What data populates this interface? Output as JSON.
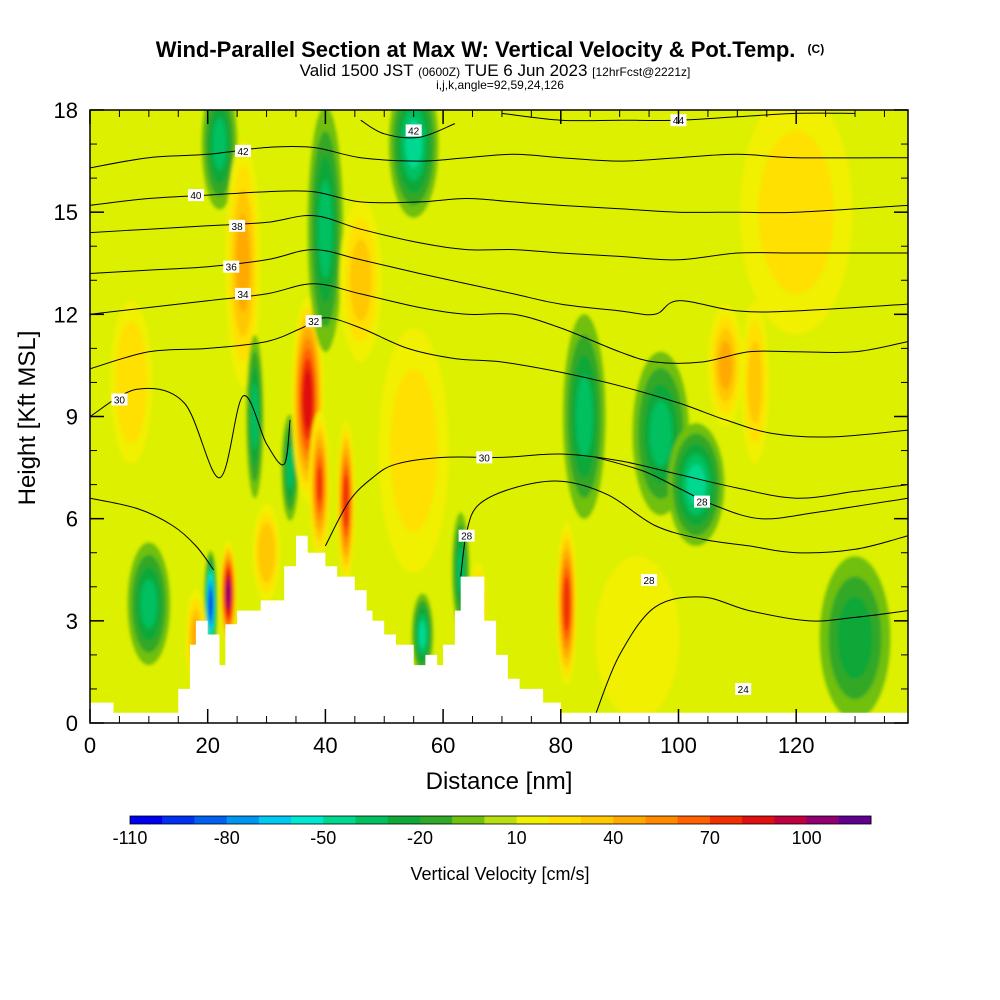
{
  "chart_data": {
    "type": "heatmap",
    "title": "Wind-Parallel Section at Max W: Vertical Velocity & Pot.Temp.",
    "title_mark": "(C)",
    "subtitle_parts": [
      "Valid 1500 JST",
      "(0600Z)",
      "TUE 6 Jun 2023",
      "[12hrFcst@2221z]"
    ],
    "subtitle2": "i,j,k,angle=92,59,24,126",
    "xlabel": "Distance [nm]",
    "ylabel": "Height [Kft MSL]",
    "xlim": [
      0,
      139
    ],
    "ylim": [
      0,
      18
    ],
    "x_ticks": [
      0,
      20,
      40,
      60,
      80,
      100,
      120
    ],
    "y_ticks": [
      0,
      3,
      6,
      9,
      12,
      15,
      18
    ],
    "colorbar": {
      "label": "Vertical Velocity [cm/s]",
      "tick_labels": [
        "-110",
        "-80",
        "-50",
        "-20",
        "10",
        "40",
        "70",
        "100"
      ],
      "levels": [
        -110,
        -100,
        -90,
        -80,
        -70,
        -60,
        -50,
        -40,
        -30,
        -20,
        -10,
        0,
        10,
        20,
        30,
        40,
        50,
        60,
        70,
        80,
        90,
        100,
        110
      ],
      "colors": [
        "#0000ee",
        "#0030f0",
        "#0060f0",
        "#0096f0",
        "#00c8f0",
        "#00e8d0",
        "#00d890",
        "#00c060",
        "#10a838",
        "#30a828",
        "#70c010",
        "#b8e010",
        "#f0f000",
        "#ffe000",
        "#ffc800",
        "#ffaa00",
        "#ff8a00",
        "#ff6000",
        "#f03000",
        "#e01010",
        "#c00040",
        "#900070",
        "#600090"
      ]
    },
    "terrain_profile": [
      [
        0,
        0.6
      ],
      [
        4,
        0.6
      ],
      [
        4,
        0.3
      ],
      [
        15,
        0.3
      ],
      [
        15,
        1.0
      ],
      [
        17,
        1.0
      ],
      [
        17,
        2.3
      ],
      [
        18,
        2.3
      ],
      [
        18,
        3.0
      ],
      [
        20,
        3.0
      ],
      [
        20,
        2.6
      ],
      [
        22,
        2.6
      ],
      [
        22,
        1.7
      ],
      [
        23,
        1.7
      ],
      [
        23,
        2.9
      ],
      [
        25,
        2.9
      ],
      [
        25,
        3.3
      ],
      [
        29,
        3.3
      ],
      [
        29,
        3.6
      ],
      [
        33,
        3.6
      ],
      [
        33,
        4.6
      ],
      [
        35,
        4.6
      ],
      [
        35,
        5.5
      ],
      [
        37,
        5.5
      ],
      [
        37,
        5.0
      ],
      [
        40,
        5.0
      ],
      [
        40,
        4.6
      ],
      [
        42,
        4.6
      ],
      [
        42,
        4.3
      ],
      [
        45,
        4.3
      ],
      [
        45,
        3.9
      ],
      [
        47,
        3.9
      ],
      [
        47,
        3.3
      ],
      [
        48,
        3.3
      ],
      [
        48,
        3.0
      ],
      [
        50,
        3.0
      ],
      [
        50,
        2.6
      ],
      [
        52,
        2.6
      ],
      [
        52,
        2.3
      ],
      [
        55,
        2.3
      ],
      [
        55,
        1.7
      ],
      [
        57,
        1.7
      ],
      [
        57,
        2.0
      ],
      [
        59,
        2.0
      ],
      [
        59,
        1.7
      ],
      [
        60,
        1.7
      ],
      [
        60,
        2.3
      ],
      [
        62,
        2.3
      ],
      [
        62,
        3.3
      ],
      [
        63,
        3.3
      ],
      [
        63,
        4.3
      ],
      [
        67,
        4.3
      ],
      [
        67,
        3.0
      ],
      [
        69,
        3.0
      ],
      [
        69,
        2.0
      ],
      [
        71,
        2.0
      ],
      [
        71,
        1.3
      ],
      [
        73,
        1.3
      ],
      [
        73,
        1.0
      ],
      [
        77,
        1.0
      ],
      [
        77,
        0.6
      ],
      [
        80,
        0.6
      ],
      [
        80,
        0.3
      ],
      [
        139,
        0.3
      ]
    ],
    "vertical_velocity_cells": [
      {
        "x": 10,
        "z": 3.5,
        "w": -40,
        "sx": 3.0,
        "sz": 1.5
      },
      {
        "x": 20.5,
        "z": 3.5,
        "w": -110,
        "sx": 0.9,
        "sz": 1.3
      },
      {
        "x": 23.5,
        "z": 3.8,
        "w": 105,
        "sx": 1.2,
        "sz": 1.3
      },
      {
        "x": 18,
        "z": 2.5,
        "w": 40,
        "sx": 1.5,
        "sz": 1.2
      },
      {
        "x": 22,
        "z": 17.0,
        "w": -40,
        "sx": 2.5,
        "sz": 1.6
      },
      {
        "x": 26,
        "z": 13.5,
        "w": 40,
        "sx": 2.5,
        "sz": 3.0
      },
      {
        "x": 28,
        "z": 9.0,
        "w": -35,
        "sx": 1.2,
        "sz": 2.0
      },
      {
        "x": 30,
        "z": 5.0,
        "w": 35,
        "sx": 2.0,
        "sz": 1.2
      },
      {
        "x": 34,
        "z": 7.5,
        "w": -40,
        "sx": 1.2,
        "sz": 1.3
      },
      {
        "x": 37,
        "z": 9.5,
        "w": 85,
        "sx": 2.3,
        "sz": 2.5
      },
      {
        "x": 39,
        "z": 7.0,
        "w": 70,
        "sx": 1.5,
        "sz": 1.8
      },
      {
        "x": 43.5,
        "z": 6.5,
        "w": 75,
        "sx": 1.3,
        "sz": 2.0
      },
      {
        "x": 40,
        "z": 14.5,
        "w": -40,
        "sx": 2.5,
        "sz": 3.0
      },
      {
        "x": 46,
        "z": 13.0,
        "w": 30,
        "sx": 3.0,
        "sz": 2.0
      },
      {
        "x": 55,
        "z": 17.0,
        "w": -45,
        "sx": 3.5,
        "sz": 1.8
      },
      {
        "x": 56.5,
        "z": 2.6,
        "w": -50,
        "sx": 1.5,
        "sz": 1.0
      },
      {
        "x": 63,
        "z": 4.5,
        "w": -40,
        "sx": 1.2,
        "sz": 1.4
      },
      {
        "x": 66,
        "z": 3.5,
        "w": 35,
        "sx": 1.2,
        "sz": 1.0
      },
      {
        "x": 55,
        "z": 8.0,
        "w": 20,
        "sx": 5.0,
        "sz": 3.0
      },
      {
        "x": 81,
        "z": 3.5,
        "w": 75,
        "sx": 1.5,
        "sz": 2.0
      },
      {
        "x": 84,
        "z": 9.0,
        "w": -35,
        "sx": 3.0,
        "sz": 2.5
      },
      {
        "x": 97,
        "z": 8.5,
        "w": -40,
        "sx": 4.0,
        "sz": 2.0
      },
      {
        "x": 103,
        "z": 7.0,
        "w": -50,
        "sx": 4.0,
        "sz": 1.5
      },
      {
        "x": 108,
        "z": 10.5,
        "w": 40,
        "sx": 2.5,
        "sz": 1.5
      },
      {
        "x": 113,
        "z": 10.0,
        "w": 30,
        "sx": 2.0,
        "sz": 2.0
      },
      {
        "x": 130,
        "z": 2.5,
        "w": -25,
        "sx": 5.0,
        "sz": 2.0
      },
      {
        "x": 93,
        "z": 2.5,
        "w": 15,
        "sx": 6.0,
        "sz": 2.0
      },
      {
        "x": 7,
        "z": 10.0,
        "w": 25,
        "sx": 3.0,
        "sz": 2.0
      },
      {
        "x": 120,
        "z": 15.0,
        "w": 20,
        "sx": 8.0,
        "sz": 3.0
      }
    ],
    "theta_contours": [
      {
        "label": "24",
        "label_at": [
          111,
          1.0
        ],
        "pts": [
          [
            86,
            0.3
          ],
          [
            90,
            2.0
          ],
          [
            96,
            3.4
          ],
          [
            104,
            3.7
          ],
          [
            112,
            3.3
          ],
          [
            122,
            3.0
          ],
          [
            130,
            3.1
          ],
          [
            139,
            3.3
          ]
        ]
      },
      {
        "label": "28",
        "label_at": [
          95,
          4.2
        ],
        "pts": [
          [
            0,
            6.6
          ],
          [
            8,
            6.3
          ],
          [
            14,
            5.8
          ],
          [
            18,
            5.2
          ],
          [
            21,
            4.5
          ]
        ]
      },
      {
        "label": "28",
        "label_at": [
          64,
          5.5
        ],
        "pts": [
          [
            63,
            4.3
          ],
          [
            64,
            5.6
          ],
          [
            66,
            6.4
          ],
          [
            72,
            6.9
          ],
          [
            80,
            7.1
          ],
          [
            88,
            6.7
          ],
          [
            96,
            5.8
          ],
          [
            104,
            5.4
          ],
          [
            112,
            5.2
          ],
          [
            120,
            5.0
          ],
          [
            130,
            5.1
          ],
          [
            139,
            5.5
          ]
        ]
      },
      {
        "label": "28",
        "label_at": [
          104,
          6.5
        ],
        "pts": [
          [
            86,
            7.8
          ],
          [
            94,
            7.4
          ],
          [
            100,
            6.9
          ],
          [
            106,
            6.4
          ],
          [
            114,
            6.0
          ],
          [
            124,
            6.2
          ],
          [
            139,
            6.6
          ]
        ]
      },
      {
        "label": "30",
        "label_at": [
          5,
          9.5
        ],
        "pts": [
          [
            0,
            9.0
          ],
          [
            8,
            9.8
          ],
          [
            16,
            9.4
          ],
          [
            22,
            7.2
          ],
          [
            26,
            9.6
          ],
          [
            30,
            8.2
          ],
          [
            33,
            7.6
          ],
          [
            34,
            8.9
          ]
        ]
      },
      {
        "label": "30",
        "label_at": [
          67,
          7.8
        ],
        "pts": [
          [
            40,
            5.2
          ],
          [
            44,
            6.5
          ],
          [
            48,
            7.2
          ],
          [
            52,
            7.6
          ],
          [
            60,
            7.8
          ],
          [
            70,
            7.8
          ],
          [
            80,
            7.9
          ],
          [
            90,
            7.7
          ],
          [
            100,
            7.3
          ],
          [
            110,
            6.9
          ],
          [
            120,
            6.6
          ],
          [
            130,
            6.8
          ],
          [
            139,
            7.0
          ]
        ]
      },
      {
        "label": "32",
        "label_at": [
          38,
          11.8
        ],
        "pts": [
          [
            0,
            10.4
          ],
          [
            10,
            10.9
          ],
          [
            20,
            11.0
          ],
          [
            30,
            11.2
          ],
          [
            36,
            11.6
          ],
          [
            40,
            11.9
          ],
          [
            46,
            11.6
          ],
          [
            54,
            11.0
          ],
          [
            62,
            10.7
          ],
          [
            70,
            10.6
          ],
          [
            80,
            10.3
          ],
          [
            90,
            9.9
          ],
          [
            100,
            9.4
          ],
          [
            108,
            8.9
          ],
          [
            116,
            8.5
          ],
          [
            126,
            8.4
          ],
          [
            139,
            8.6
          ]
        ]
      },
      {
        "label": "34",
        "label_at": [
          26,
          12.6
        ],
        "pts": [
          [
            0,
            12.0
          ],
          [
            10,
            12.2
          ],
          [
            20,
            12.4
          ],
          [
            30,
            12.6
          ],
          [
            38,
            12.9
          ],
          [
            46,
            12.6
          ],
          [
            56,
            12.2
          ],
          [
            64,
            12.0
          ],
          [
            72,
            12.0
          ],
          [
            80,
            11.6
          ],
          [
            90,
            10.9
          ],
          [
            96,
            10.6
          ],
          [
            104,
            10.6
          ],
          [
            112,
            10.9
          ],
          [
            120,
            10.9
          ],
          [
            130,
            10.9
          ],
          [
            139,
            11.2
          ]
        ]
      },
      {
        "label": "36",
        "label_at": [
          24,
          13.4
        ],
        "pts": [
          [
            0,
            13.2
          ],
          [
            10,
            13.3
          ],
          [
            20,
            13.4
          ],
          [
            30,
            13.6
          ],
          [
            38,
            13.9
          ],
          [
            46,
            13.6
          ],
          [
            56,
            13.2
          ],
          [
            64,
            12.9
          ],
          [
            72,
            12.6
          ],
          [
            80,
            12.3
          ],
          [
            90,
            12.1
          ],
          [
            96,
            12.0
          ],
          [
            100,
            12.4
          ],
          [
            110,
            12.1
          ],
          [
            120,
            12.1
          ],
          [
            139,
            12.3
          ]
        ]
      },
      {
        "label": "38",
        "label_at": [
          25,
          14.6
        ],
        "pts": [
          [
            0,
            14.4
          ],
          [
            10,
            14.5
          ],
          [
            20,
            14.6
          ],
          [
            30,
            14.7
          ],
          [
            38,
            14.9
          ],
          [
            46,
            14.5
          ],
          [
            56,
            14.1
          ],
          [
            64,
            13.9
          ],
          [
            72,
            13.9
          ],
          [
            80,
            13.8
          ],
          [
            90,
            13.7
          ],
          [
            100,
            13.6
          ],
          [
            110,
            13.8
          ],
          [
            120,
            13.8
          ],
          [
            139,
            13.8
          ]
        ]
      },
      {
        "label": "40",
        "label_at": [
          18,
          15.5
        ],
        "pts": [
          [
            0,
            15.2
          ],
          [
            10,
            15.4
          ],
          [
            20,
            15.5
          ],
          [
            30,
            15.6
          ],
          [
            38,
            15.6
          ],
          [
            46,
            15.3
          ],
          [
            56,
            15.3
          ],
          [
            64,
            15.4
          ],
          [
            72,
            15.3
          ],
          [
            80,
            15.2
          ],
          [
            90,
            15.1
          ],
          [
            100,
            15.0
          ],
          [
            110,
            15.0
          ],
          [
            120,
            15.0
          ],
          [
            139,
            15.2
          ]
        ]
      },
      {
        "label": "42",
        "label_at": [
          26,
          16.8
        ],
        "pts": [
          [
            0,
            16.3
          ],
          [
            10,
            16.6
          ],
          [
            20,
            16.7
          ],
          [
            30,
            16.9
          ],
          [
            38,
            16.9
          ],
          [
            46,
            16.6
          ],
          [
            56,
            16.5
          ],
          [
            64,
            16.6
          ],
          [
            72,
            16.7
          ],
          [
            80,
            16.6
          ],
          [
            90,
            16.5
          ],
          [
            100,
            16.6
          ],
          [
            110,
            16.7
          ],
          [
            120,
            16.6
          ],
          [
            139,
            16.6
          ]
        ]
      },
      {
        "label": "42",
        "label_at": [
          55,
          17.4
        ],
        "pts": [
          [
            46,
            17.7
          ],
          [
            50,
            17.3
          ],
          [
            56,
            17.2
          ],
          [
            62,
            17.6
          ]
        ]
      },
      {
        "label": "44",
        "label_at": [
          100,
          17.7
        ],
        "pts": [
          [
            70,
            17.9
          ],
          [
            80,
            17.7
          ],
          [
            90,
            17.7
          ],
          [
            100,
            17.7
          ],
          [
            110,
            17.8
          ],
          [
            120,
            17.9
          ],
          [
            130,
            17.9
          ]
        ]
      }
    ]
  }
}
